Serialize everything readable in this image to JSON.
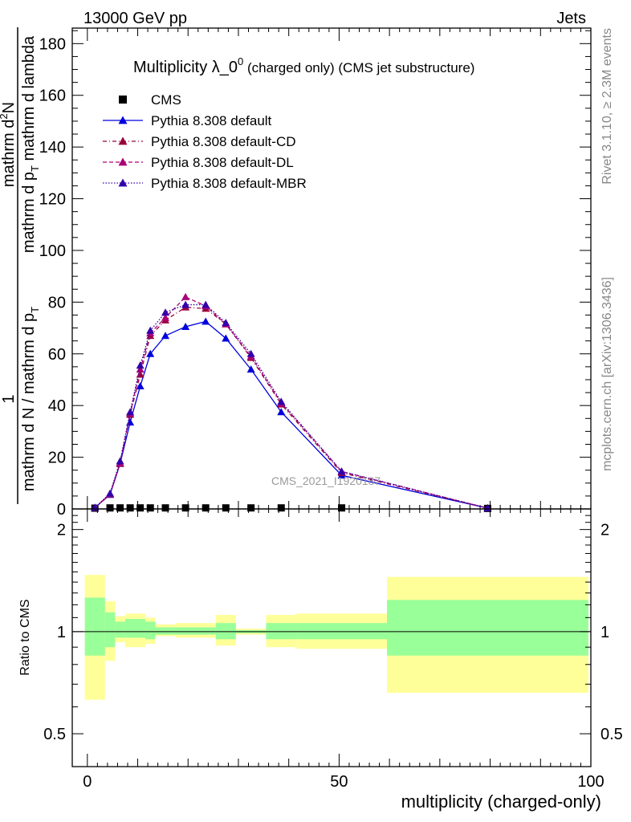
{
  "header": {
    "left": "13000 GeV pp",
    "right": "Jets",
    "side_top": "Rivet 3.1.10, ≥ 2.3M events",
    "side_bottom": "mcplots.cern.ch [arXiv:1306.3436]",
    "watermark": "CMS_2021_I1920187"
  },
  "colors": {
    "data": "#000000",
    "default": "#0000dd",
    "default_cd": "#99003a",
    "default_dl": "#aa0077",
    "default_mbr": "#3300aa",
    "band_inner": "#99ff99",
    "band_outer": "#ffff99"
  },
  "chart_data": [
    {
      "type": "line",
      "title": "Multiplicity λ_0",
      "title_sup": "0",
      "title_suffix": " (charged only) (CMS jet substructure)",
      "ylabel_num": "mathrm d",
      "ylabel_num_sup": "2",
      "ylabel_num_tail": "N",
      "ylabel_den": "mathrm d p",
      "ylabel_den_sub": "T",
      "ylabel_den_tail": " mathrm d lambda",
      "ylabel_prefix_num": "1",
      "ylabel_prefix_den": "mathrm d N / mathrm d p",
      "ylabel_prefix_den_sub": "T",
      "xlim": [
        -3,
        100
      ],
      "ylim": [
        0,
        186
      ],
      "yticks": [
        0,
        20,
        40,
        60,
        80,
        100,
        120,
        140,
        160,
        180
      ],
      "legend_position": "top-left",
      "series": [
        {
          "name": "CMS",
          "marker": "square",
          "x": [
            1.5,
            4.5,
            6.5,
            8.5,
            10.5,
            12.5,
            15.5,
            19.5,
            23.5,
            27.5,
            32.5,
            38.5,
            50.5,
            79.5
          ],
          "y": [
            0.3,
            0.4,
            0.4,
            0.4,
            0.4,
            0.4,
            0.4,
            0.4,
            0.4,
            0.4,
            0.4,
            0.4,
            0.4,
            0.2
          ]
        },
        {
          "name": "Pythia 8.308 default",
          "marker": "triangle",
          "dash": "solid",
          "x": [
            1.5,
            4.5,
            6.5,
            8.5,
            10.5,
            12.5,
            15.5,
            19.5,
            23.5,
            27.5,
            32.5,
            38.5,
            50.5,
            79.5
          ],
          "y": [
            0.5,
            5.5,
            17.5,
            33.5,
            47.5,
            60,
            67,
            70.5,
            72.5,
            66,
            54,
            37.5,
            13,
            0.3
          ]
        },
        {
          "name": "Pythia 8.308 default-CD",
          "marker": "triangle",
          "dash": "5,3,1,3",
          "x": [
            1.5,
            4.5,
            6.5,
            8.5,
            10.5,
            12.5,
            15.5,
            19.5,
            23.5,
            27.5,
            32.5,
            38.5,
            50.5,
            79.5
          ],
          "y": [
            0.5,
            5.7,
            17.5,
            36.5,
            52,
            67,
            73,
            78,
            77.5,
            71.5,
            58.5,
            40.5,
            14,
            0.3
          ]
        },
        {
          "name": "Pythia 8.308 default-DL",
          "marker": "triangle",
          "dash": "5,3",
          "x": [
            1.5,
            4.5,
            6.5,
            8.5,
            10.5,
            12.5,
            15.5,
            19.5,
            23.5,
            27.5,
            32.5,
            38.5,
            50.5,
            79.5
          ],
          "y": [
            0.5,
            5.7,
            17.8,
            37,
            54,
            68,
            74,
            82,
            78.5,
            71.5,
            59,
            41,
            14.5,
            0.3
          ]
        },
        {
          "name": "Pythia 8.308 default-MBR",
          "marker": "triangle",
          "dash": "1.5,2",
          "x": [
            1.5,
            4.5,
            6.5,
            8.5,
            10.5,
            12.5,
            15.5,
            19.5,
            23.5,
            27.5,
            32.5,
            38.5,
            50.5,
            79.5
          ],
          "y": [
            0.5,
            6,
            18.5,
            37.5,
            55.5,
            69,
            76,
            79,
            79,
            72,
            60,
            41.5,
            14.5,
            0.3
          ]
        }
      ]
    },
    {
      "type": "area",
      "ylabel": "Ratio to CMS",
      "xlabel": "multiplicity (charged-only)",
      "xlim": [
        -3,
        100
      ],
      "xticks": [
        0,
        50,
        100
      ],
      "yscale": "log",
      "ylim": [
        0.4,
        2.3
      ],
      "yticks": [
        0.5,
        1,
        2
      ],
      "bins": [
        {
          "lo": -0.5,
          "hi": 3.5,
          "inner_lo": 0.85,
          "inner_hi": 1.26,
          "outer_lo": 0.63,
          "outer_hi": 1.47
        },
        {
          "lo": 3.5,
          "hi": 5.5,
          "inner_lo": 0.9,
          "inner_hi": 1.14,
          "outer_lo": 0.82,
          "outer_hi": 1.23
        },
        {
          "lo": 5.5,
          "hi": 7.5,
          "inner_lo": 0.96,
          "inner_hi": 1.07,
          "outer_lo": 0.93,
          "outer_hi": 1.11
        },
        {
          "lo": 7.5,
          "hi": 11.5,
          "inner_lo": 0.96,
          "inner_hi": 1.09,
          "outer_lo": 0.9,
          "outer_hi": 1.13
        },
        {
          "lo": 11.5,
          "hi": 13.5,
          "inner_lo": 0.95,
          "inner_hi": 1.07,
          "outer_lo": 0.92,
          "outer_hi": 1.1
        },
        {
          "lo": 13.5,
          "hi": 17.5,
          "inner_lo": 0.98,
          "inner_hi": 1.03,
          "outer_lo": 0.97,
          "outer_hi": 1.05
        },
        {
          "lo": 17.5,
          "hi": 25.5,
          "inner_lo": 0.98,
          "inner_hi": 1.03,
          "outer_lo": 0.96,
          "outer_hi": 1.06
        },
        {
          "lo": 25.5,
          "hi": 29.5,
          "inner_lo": 0.95,
          "inner_hi": 1.06,
          "outer_lo": 0.91,
          "outer_hi": 1.12
        },
        {
          "lo": 29.5,
          "hi": 35.5,
          "inner_lo": 0.99,
          "inner_hi": 1.01,
          "outer_lo": 0.98,
          "outer_hi": 1.02
        },
        {
          "lo": 35.5,
          "hi": 41.5,
          "inner_lo": 0.95,
          "inner_hi": 1.06,
          "outer_lo": 0.9,
          "outer_hi": 1.12
        },
        {
          "lo": 41.5,
          "hi": 59.5,
          "inner_lo": 0.95,
          "inner_hi": 1.06,
          "outer_lo": 0.89,
          "outer_hi": 1.13
        },
        {
          "lo": 59.5,
          "hi": 99.5,
          "inner_lo": 0.85,
          "inner_hi": 1.24,
          "outer_lo": 0.66,
          "outer_hi": 1.45
        }
      ]
    }
  ]
}
